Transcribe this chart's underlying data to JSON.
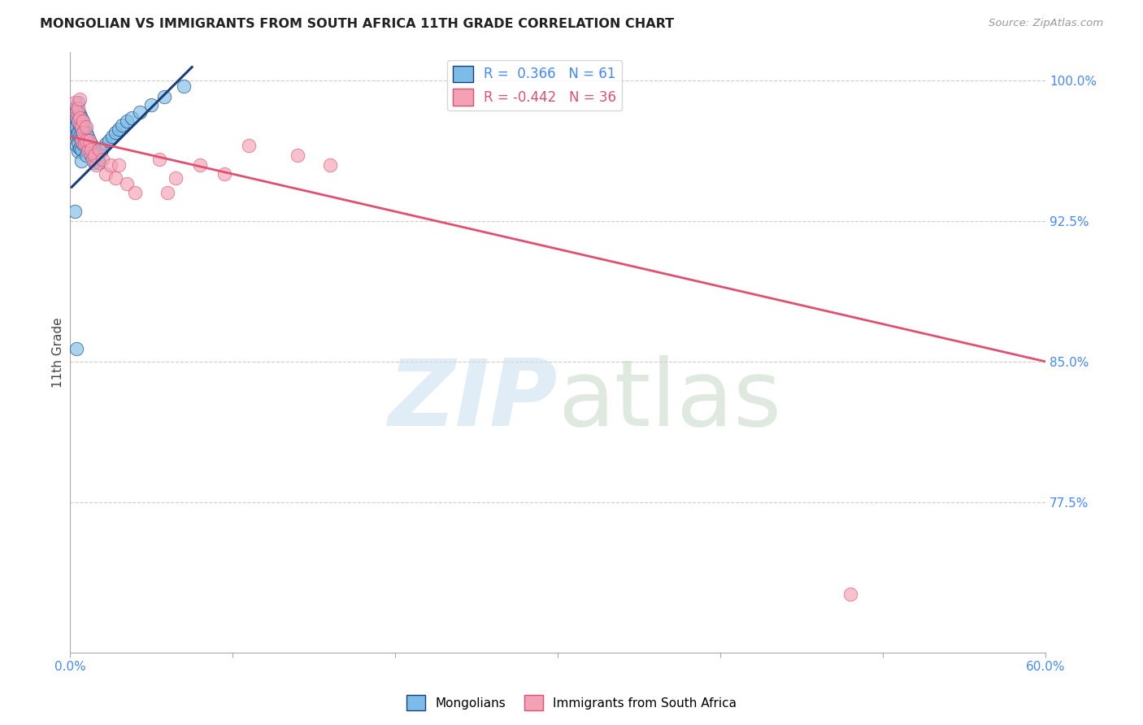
{
  "title": "MONGOLIAN VS IMMIGRANTS FROM SOUTH AFRICA 11TH GRADE CORRELATION CHART",
  "source": "Source: ZipAtlas.com",
  "ylabel": "11th Grade",
  "ytick_labels": [
    "100.0%",
    "92.5%",
    "85.0%",
    "77.5%"
  ],
  "ytick_values": [
    1.0,
    0.925,
    0.85,
    0.775
  ],
  "xlim": [
    0.0,
    0.6
  ],
  "ylim": [
    0.695,
    1.015
  ],
  "blue_r": 0.366,
  "blue_n": 61,
  "pink_r": -0.442,
  "pink_n": 36,
  "blue_color": "#7bbde8",
  "pink_color": "#f4a0b5",
  "blue_line_color": "#1a3f7a",
  "pink_line_color": "#e05070",
  "background_color": "#ffffff",
  "blue_points_x": [
    0.002,
    0.002,
    0.003,
    0.003,
    0.003,
    0.004,
    0.004,
    0.004,
    0.004,
    0.004,
    0.005,
    0.005,
    0.005,
    0.005,
    0.005,
    0.005,
    0.006,
    0.006,
    0.006,
    0.006,
    0.007,
    0.007,
    0.007,
    0.007,
    0.007,
    0.008,
    0.008,
    0.008,
    0.009,
    0.009,
    0.01,
    0.01,
    0.01,
    0.011,
    0.011,
    0.012,
    0.012,
    0.013,
    0.013,
    0.014,
    0.015,
    0.015,
    0.016,
    0.017,
    0.018,
    0.019,
    0.02,
    0.022,
    0.024,
    0.026,
    0.028,
    0.03,
    0.032,
    0.035,
    0.038,
    0.043,
    0.05,
    0.058,
    0.07,
    0.003,
    0.004
  ],
  "blue_points_y": [
    0.978,
    0.972,
    0.985,
    0.98,
    0.975,
    0.985,
    0.98,
    0.975,
    0.97,
    0.965,
    0.988,
    0.983,
    0.978,
    0.972,
    0.967,
    0.962,
    0.982,
    0.976,
    0.97,
    0.964,
    0.98,
    0.975,
    0.969,
    0.963,
    0.957,
    0.978,
    0.972,
    0.966,
    0.975,
    0.968,
    0.972,
    0.966,
    0.96,
    0.97,
    0.964,
    0.968,
    0.962,
    0.966,
    0.96,
    0.964,
    0.962,
    0.956,
    0.96,
    0.958,
    0.956,
    0.962,
    0.964,
    0.966,
    0.968,
    0.97,
    0.972,
    0.974,
    0.976,
    0.978,
    0.98,
    0.983,
    0.987,
    0.991,
    0.997,
    0.93,
    0.857
  ],
  "pink_points_x": [
    0.003,
    0.004,
    0.005,
    0.005,
    0.006,
    0.006,
    0.007,
    0.007,
    0.008,
    0.008,
    0.009,
    0.01,
    0.01,
    0.011,
    0.012,
    0.013,
    0.014,
    0.015,
    0.016,
    0.018,
    0.02,
    0.022,
    0.025,
    0.028,
    0.03,
    0.035,
    0.04,
    0.055,
    0.065,
    0.08,
    0.095,
    0.11,
    0.14,
    0.16,
    0.48,
    0.06
  ],
  "pink_points_y": [
    0.988,
    0.983,
    0.985,
    0.978,
    0.98,
    0.99,
    0.975,
    0.968,
    0.978,
    0.972,
    0.966,
    0.975,
    0.968,
    0.962,
    0.968,
    0.963,
    0.958,
    0.96,
    0.955,
    0.963,
    0.958,
    0.95,
    0.955,
    0.948,
    0.955,
    0.945,
    0.94,
    0.958,
    0.948,
    0.955,
    0.95,
    0.965,
    0.96,
    0.955,
    0.726,
    0.94
  ],
  "blue_line_x": [
    0.001,
    0.075
  ],
  "blue_line_y": [
    0.943,
    1.007
  ],
  "pink_line_x": [
    0.0,
    0.6
  ],
  "pink_line_y": [
    0.97,
    0.85
  ]
}
